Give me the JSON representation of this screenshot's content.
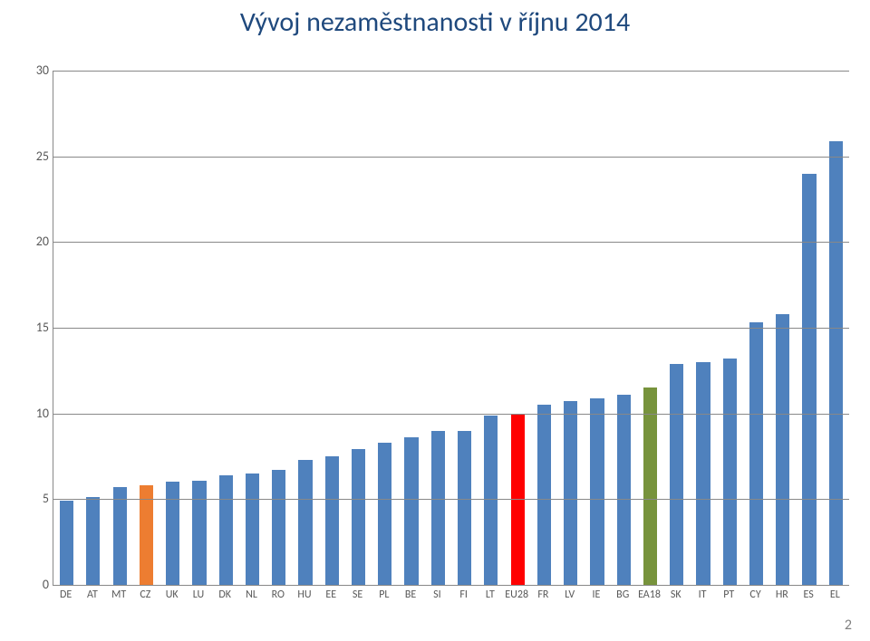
{
  "title": "Vývoj nezaměstnanosti v říjnu 2014",
  "page_number": "2",
  "chart": {
    "type": "bar",
    "ylim": [
      0,
      30
    ],
    "ytick_step": 5,
    "grid_color": "#888888",
    "background_color": "#ffffff",
    "axis_label_color": "#595959",
    "title_color": "#1f497d",
    "title_fontsize": 30,
    "x_label_fontsize": 12,
    "y_label_fontsize": 14,
    "bar_width_ratio": 0.52,
    "categories": [
      "DE",
      "AT",
      "MT",
      "CZ",
      "UK",
      "LU",
      "DK",
      "NL",
      "RO",
      "HU",
      "EE",
      "SE",
      "PL",
      "BE",
      "SI",
      "FI",
      "LT",
      "EU28",
      "FR",
      "LV",
      "IE",
      "BG",
      "EA18",
      "SK",
      "IT",
      "PT",
      "CY",
      "HR",
      "ES",
      "EL"
    ],
    "values": [
      4.9,
      5.1,
      5.7,
      5.8,
      6.0,
      6.1,
      6.4,
      6.5,
      6.7,
      7.3,
      7.5,
      7.9,
      8.3,
      8.6,
      9.0,
      9.0,
      9.9,
      10.0,
      10.5,
      10.7,
      10.9,
      11.1,
      11.5,
      12.9,
      13.0,
      13.2,
      15.3,
      15.8,
      24.0,
      25.9
    ],
    "bar_colors": [
      "#4f81bd",
      "#4f81bd",
      "#4f81bd",
      "#ed7d31",
      "#4f81bd",
      "#4f81bd",
      "#4f81bd",
      "#4f81bd",
      "#4f81bd",
      "#4f81bd",
      "#4f81bd",
      "#4f81bd",
      "#4f81bd",
      "#4f81bd",
      "#4f81bd",
      "#4f81bd",
      "#4f81bd",
      "#ff0000",
      "#4f81bd",
      "#4f81bd",
      "#4f81bd",
      "#4f81bd",
      "#77933c",
      "#4f81bd",
      "#4f81bd",
      "#4f81bd",
      "#4f81bd",
      "#4f81bd",
      "#4f81bd",
      "#4f81bd"
    ]
  }
}
